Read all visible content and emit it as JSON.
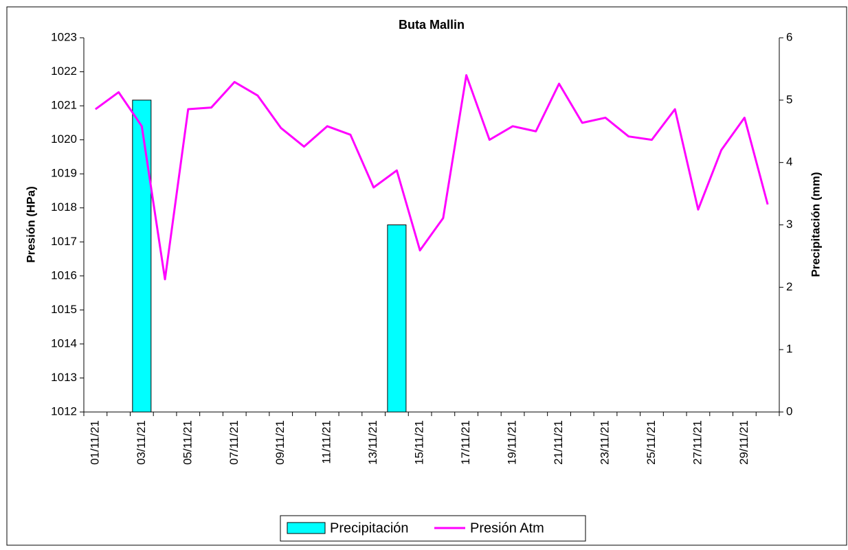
{
  "chart_data": {
    "type": "bar_line",
    "title": "Buta Mallin",
    "y_label": "Presión (HPa)",
    "y2_label": "Precipitación (mm)",
    "categories": [
      "01/11/21",
      null,
      "03/11/21",
      null,
      "05/11/21",
      null,
      "07/11/21",
      null,
      "09/11/21",
      null,
      "11/11/21",
      null,
      "13/11/21",
      null,
      "15/11/21",
      null,
      "17/11/21",
      null,
      "19/11/21",
      null,
      "21/11/21",
      null,
      "23/11/21",
      null,
      "25/11/21",
      null,
      "27/11/21",
      null,
      "29/11/21",
      null
    ],
    "series": [
      {
        "name": "Precipitación",
        "type": "bar",
        "axis": "y2",
        "color": "#00ffff",
        "values": [
          0,
          0,
          5,
          0,
          0,
          0,
          0,
          0,
          0,
          0,
          0,
          0,
          0,
          3,
          0,
          0,
          0,
          0,
          0,
          0,
          0,
          0,
          0,
          0,
          0,
          0,
          0,
          0,
          0,
          0
        ]
      },
      {
        "name": "Presión Atm",
        "type": "line",
        "axis": "y",
        "color": "#ff00ff",
        "values": [
          1020.9,
          1021.4,
          1020.4,
          1015.9,
          1020.9,
          1020.95,
          1021.7,
          1021.3,
          1020.35,
          1019.8,
          1020.4,
          1020.15,
          1018.6,
          1019.1,
          1016.75,
          1017.7,
          1021.9,
          1020.0,
          1020.4,
          1020.25,
          1021.65,
          1020.5,
          1020.65,
          1020.1,
          1020.0,
          1020.9,
          1017.95,
          1019.7,
          1020.65,
          1018.1
        ]
      }
    ],
    "ylim": [
      1012,
      1023
    ],
    "yticks": [
      1012,
      1013,
      1014,
      1015,
      1016,
      1017,
      1018,
      1019,
      1020,
      1021,
      1022,
      1023
    ],
    "y2lim": [
      0,
      6
    ],
    "y2ticks": [
      0,
      1,
      2,
      3,
      4,
      5,
      6
    ]
  }
}
